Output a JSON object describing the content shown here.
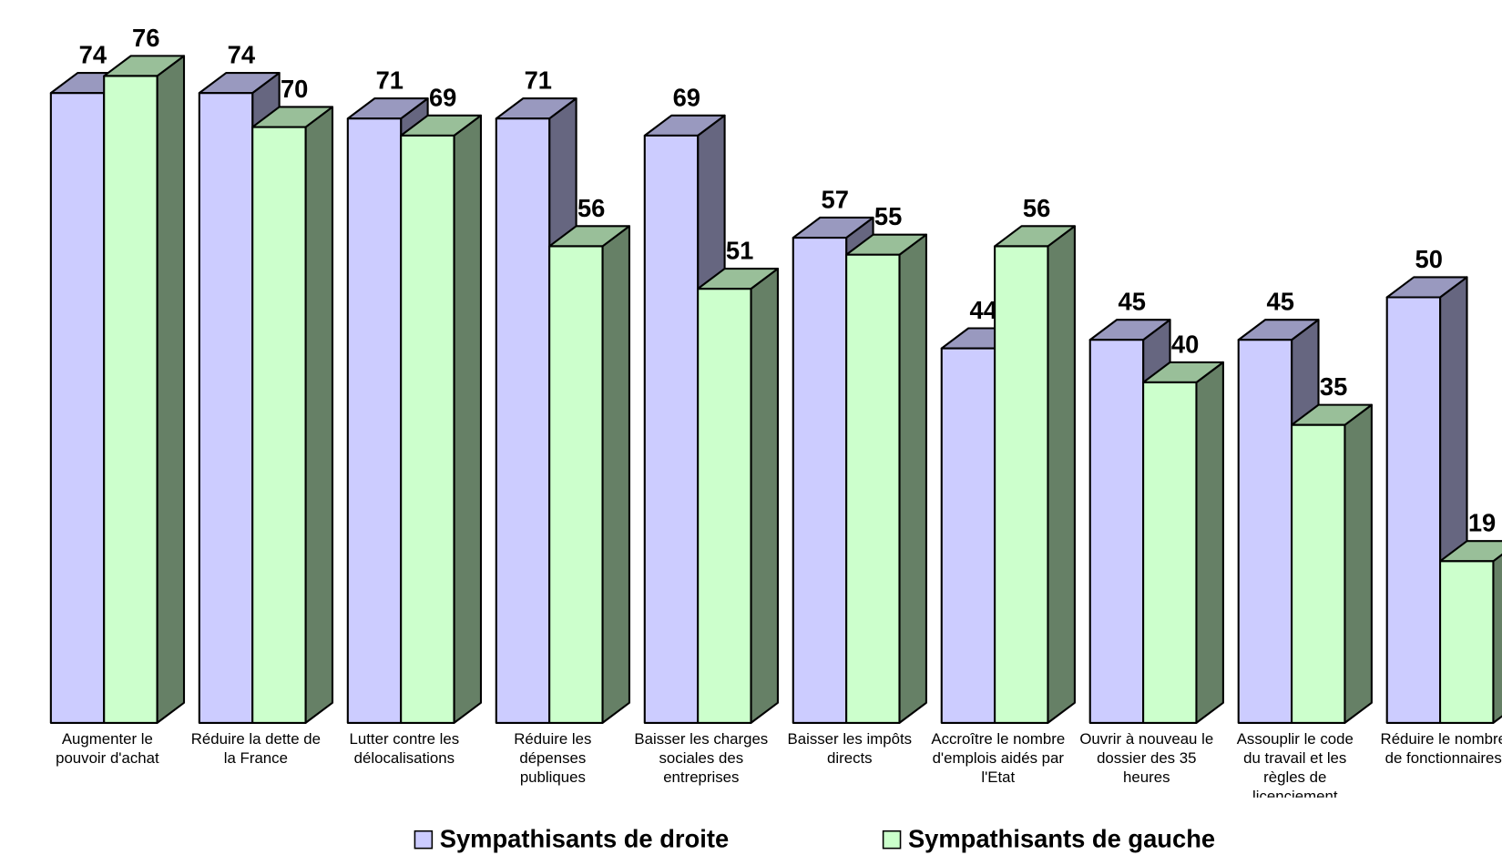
{
  "chart_data": {
    "type": "bar3d",
    "categories": [
      "Augmenter le pouvoir d'achat",
      "Réduire la dette de la France",
      "Lutter contre les délocalisations",
      "Réduire les dépenses publiques",
      "Baisser les charges sociales des entreprises",
      "Baisser les impôts directs",
      "Accroître le nombre d'emplois aidés par l'Etat",
      "Ouvrir à nouveau le dossier des 35 heures",
      "Assouplir le code du travail et les règles de licenciement",
      "Réduire le nombre de fonctionnaires"
    ],
    "series": [
      {
        "name": "Sympathisants de droite",
        "color": "#ccccff",
        "values": [
          74,
          74,
          71,
          71,
          69,
          57,
          44,
          45,
          45,
          50
        ]
      },
      {
        "name": "Sympathisants de gauche",
        "color": "#ccffcc",
        "values": [
          76,
          70,
          69,
          56,
          51,
          55,
          56,
          40,
          35,
          19
        ]
      }
    ],
    "legend": "bottom"
  }
}
